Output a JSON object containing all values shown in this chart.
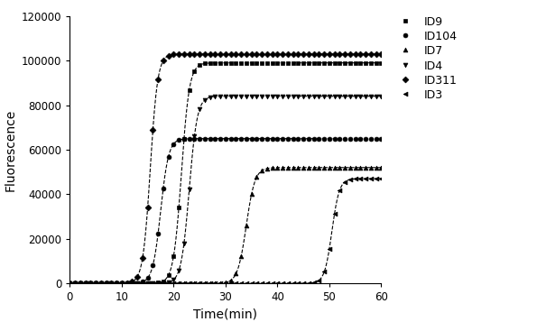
{
  "series": [
    {
      "label": "ID9",
      "marker": "s",
      "plateau": 99000,
      "midpoint": 21.5,
      "steepness": 1.3,
      "color": "#000000"
    },
    {
      "label": "ID104",
      "marker": "o",
      "plateau": 65000,
      "midpoint": 17.5,
      "steepness": 1.3,
      "color": "#000000"
    },
    {
      "label": "ID7",
      "marker": "^",
      "plateau": 52000,
      "midpoint": 34.0,
      "steepness": 1.2,
      "color": "#000000"
    },
    {
      "label": "ID4",
      "marker": "v",
      "plateau": 84000,
      "midpoint": 23.0,
      "steepness": 1.3,
      "color": "#000000"
    },
    {
      "label": "ID311",
      "marker": "D",
      "plateau": 103000,
      "midpoint": 15.5,
      "steepness": 1.4,
      "color": "#000000"
    },
    {
      "label": "ID3",
      "marker": "<",
      "plateau": 47000,
      "midpoint": 50.5,
      "steepness": 1.4,
      "color": "#000000"
    }
  ],
  "xmin": 0,
  "xmax": 60,
  "ymin": 0,
  "ymax": 120000,
  "yticks": [
    0,
    20000,
    40000,
    60000,
    80000,
    100000,
    120000
  ],
  "xticks": [
    0,
    10,
    20,
    30,
    40,
    50,
    60
  ],
  "xlabel": "Time(min)",
  "ylabel": "Fluorescence",
  "marker_size": 3.5,
  "line_style": "--",
  "line_width": 0.8,
  "background_color": "#ffffff",
  "legend_order": [
    "ID9",
    "ID104",
    "ID7",
    "ID4",
    "ID311",
    "ID3"
  ]
}
